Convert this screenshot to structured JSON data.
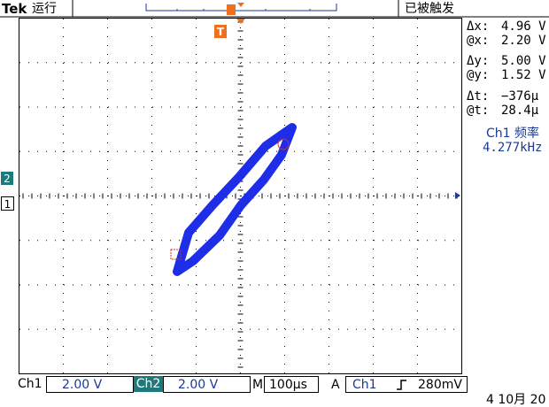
{
  "header": {
    "brand": "Tek",
    "status": "运行",
    "trigger_state": "已被触发"
  },
  "markers": {
    "ch2": "2",
    "ch1": "1",
    "trigger": "T"
  },
  "readouts": [
    {
      "label": "Δx:",
      "value": "4.96 V"
    },
    {
      "label": "@x:",
      "value": "2.20 V"
    },
    {
      "label": "Δy:",
      "value": "5.00 V"
    },
    {
      "label": "@y:",
      "value": "1.52 V"
    },
    {
      "label": "Δt:",
      "value": "−376µ"
    },
    {
      "label": "@t:",
      "value": "28.4µ"
    }
  ],
  "frequency": {
    "label": "Ch1 频率",
    "value": "4.277kHz"
  },
  "footer": {
    "ch1": "Ch1",
    "ch1_scale": "2.00 V",
    "ch2": "Ch2",
    "ch2_scale": "2.00 V",
    "timebase_label": "M",
    "timebase": "100µs",
    "trigger_label": "A",
    "trigger_source": "Ch1",
    "trigger_level": "280mV"
  },
  "date": "4 10月 20"
}
